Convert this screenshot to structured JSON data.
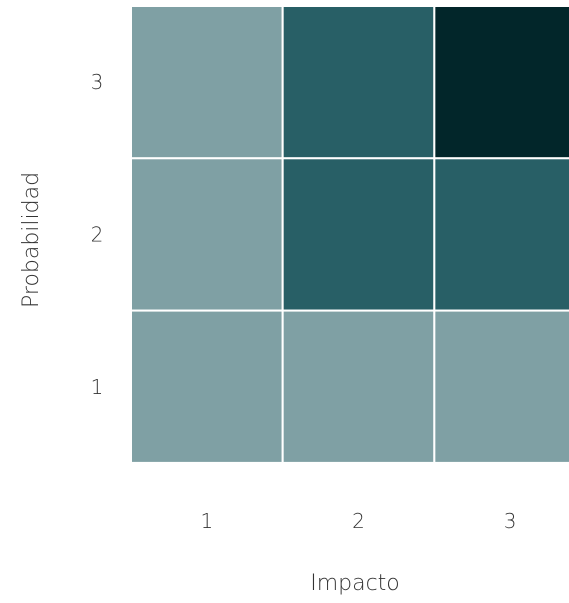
{
  "chart_data": {
    "type": "heatmap",
    "xlabel": "Impacto",
    "ylabel": "Probabilidad",
    "x_categories": [
      "1",
      "2",
      "3"
    ],
    "y_categories": [
      "1",
      "2",
      "3"
    ],
    "cells": [
      {
        "x": "1",
        "y": "3",
        "color": "#7fa0a4"
      },
      {
        "x": "2",
        "y": "3",
        "color": "#285f66"
      },
      {
        "x": "3",
        "y": "3",
        "color": "#02262a"
      },
      {
        "x": "1",
        "y": "2",
        "color": "#7fa0a4"
      },
      {
        "x": "2",
        "y": "2",
        "color": "#285f66"
      },
      {
        "x": "3",
        "y": "2",
        "color": "#285f66"
      },
      {
        "x": "1",
        "y": "1",
        "color": "#7fa0a4"
      },
      {
        "x": "2",
        "y": "1",
        "color": "#7fa0a4"
      },
      {
        "x": "3",
        "y": "1",
        "color": "#7fa0a4"
      }
    ],
    "grid_color": "#ffffff"
  }
}
